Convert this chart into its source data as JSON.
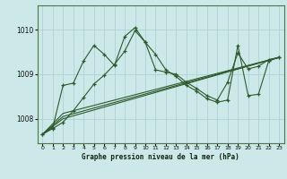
{
  "xlabel": "Graphe pression niveau de la mer (hPa)",
  "background_color": "#cce8e8",
  "grid_color": "#aacece",
  "line_color": "#2d5a2d",
  "ylim": [
    1007.45,
    1010.55
  ],
  "xlim": [
    -0.5,
    23.5
  ],
  "yticks": [
    1008,
    1009,
    1010
  ],
  "xticks": [
    0,
    1,
    2,
    3,
    4,
    5,
    6,
    7,
    8,
    9,
    10,
    11,
    12,
    13,
    14,
    15,
    16,
    17,
    18,
    19,
    20,
    21,
    22,
    23
  ],
  "series_volatile_x": [
    0,
    1,
    2,
    3,
    4,
    5,
    6,
    7,
    8,
    9,
    10,
    11,
    12,
    13,
    14,
    15,
    16,
    17,
    18,
    19,
    20,
    21,
    22,
    23
  ],
  "series_volatile_y": [
    1007.65,
    1007.8,
    1008.75,
    1008.8,
    1009.3,
    1009.65,
    1009.45,
    1009.2,
    1009.85,
    1010.05,
    1009.72,
    1009.45,
    1009.1,
    1008.95,
    1008.75,
    1008.62,
    1008.45,
    1008.37,
    1008.42,
    1009.65,
    1008.52,
    1008.55,
    1009.3,
    1009.38
  ],
  "series_smooth_x": [
    0,
    1,
    2,
    3,
    4,
    5,
    6,
    7,
    8,
    9,
    10,
    11,
    12,
    13,
    14,
    15,
    16,
    17,
    18,
    19,
    20,
    21,
    22,
    23
  ],
  "series_smooth_y": [
    1007.65,
    1007.78,
    1007.92,
    1008.18,
    1008.48,
    1008.78,
    1008.98,
    1009.22,
    1009.52,
    1009.98,
    1009.72,
    1009.1,
    1009.05,
    1009.0,
    1008.82,
    1008.68,
    1008.52,
    1008.42,
    1008.82,
    1009.48,
    1009.12,
    1009.18,
    1009.33,
    1009.38
  ],
  "trend1_x": [
    0,
    2,
    23
  ],
  "trend1_y": [
    1007.65,
    1008.0,
    1009.38
  ],
  "trend2_x": [
    0,
    2,
    23
  ],
  "trend2_y": [
    1007.65,
    1008.05,
    1009.38
  ],
  "trend3_x": [
    0,
    2,
    23
  ],
  "trend3_y": [
    1007.65,
    1008.12,
    1009.38
  ]
}
